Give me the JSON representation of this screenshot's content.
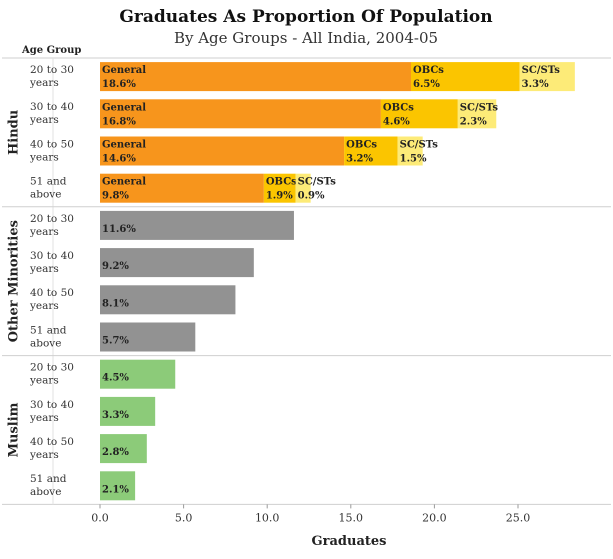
{
  "title": "Graduates As Proportion Of Population",
  "subtitle": "By Age Groups - All India, 2004-05",
  "row_header": "Age Group",
  "colors": {
    "General": "#F7951C",
    "OBCs": "#FBC500",
    "SC/STs": "#FDEB78",
    "Other Minorities": "#929292",
    "Muslim": "#8CCB79"
  },
  "chart_data": {
    "type": "bar",
    "orientation": "horizontal",
    "stacked": true,
    "xlabel": "Graduates",
    "xlim": [
      0,
      29
    ],
    "xticks": [
      0.0,
      5.0,
      10.0,
      15.0,
      20.0,
      25.0
    ],
    "xtick_labels": [
      "0.0",
      "5.0",
      "10.0",
      "15.0",
      "20.0",
      "25.0"
    ],
    "groups": [
      {
        "name": "Hindu",
        "rows": [
          {
            "label": [
              "20 to 30",
              "years"
            ],
            "segments": [
              {
                "name": "General",
                "value": 18.6,
                "display": "18.6%"
              },
              {
                "name": "OBCs",
                "value": 6.5,
                "display": "6.5%"
              },
              {
                "name": "SC/STs",
                "value": 3.3,
                "display": "3.3%"
              }
            ]
          },
          {
            "label": [
              "30 to 40",
              "years"
            ],
            "segments": [
              {
                "name": "General",
                "value": 16.8,
                "display": "16.8%"
              },
              {
                "name": "OBCs",
                "value": 4.6,
                "display": "4.6%"
              },
              {
                "name": "SC/STs",
                "value": 2.3,
                "display": "2.3%"
              }
            ]
          },
          {
            "label": [
              "40 to 50",
              "years"
            ],
            "segments": [
              {
                "name": "General",
                "value": 14.6,
                "display": "14.6%"
              },
              {
                "name": "OBCs",
                "value": 3.2,
                "display": "3.2%"
              },
              {
                "name": "SC/STs",
                "value": 1.5,
                "display": "1.5%"
              }
            ]
          },
          {
            "label": [
              "51 and",
              "above"
            ],
            "segments": [
              {
                "name": "General",
                "value": 9.8,
                "display": "9.8%"
              },
              {
                "name": "OBCs",
                "value": 1.9,
                "display": "1.9%"
              },
              {
                "name": "SC/STs",
                "value": 0.9,
                "display": "0.9%"
              }
            ]
          }
        ]
      },
      {
        "name": "Other Minorities",
        "rows": [
          {
            "label": [
              "20 to 30",
              "years"
            ],
            "segments": [
              {
                "name": "Other Minorities",
                "value": 11.6,
                "display": "11.6%"
              }
            ]
          },
          {
            "label": [
              "30 to 40",
              "years"
            ],
            "segments": [
              {
                "name": "Other Minorities",
                "value": 9.2,
                "display": "9.2%"
              }
            ]
          },
          {
            "label": [
              "40 to 50",
              "years"
            ],
            "segments": [
              {
                "name": "Other Minorities",
                "value": 8.1,
                "display": "8.1%"
              }
            ]
          },
          {
            "label": [
              "51 and",
              "above"
            ],
            "segments": [
              {
                "name": "Other Minorities",
                "value": 5.7,
                "display": "5.7%"
              }
            ]
          }
        ]
      },
      {
        "name": "Muslim",
        "rows": [
          {
            "label": [
              "20 to 30",
              "years"
            ],
            "segments": [
              {
                "name": "Muslim",
                "value": 4.5,
                "display": "4.5%"
              }
            ]
          },
          {
            "label": [
              "30 to 40",
              "years"
            ],
            "segments": [
              {
                "name": "Muslim",
                "value": 3.3,
                "display": "3.3%"
              }
            ]
          },
          {
            "label": [
              "40 to 50",
              "years"
            ],
            "segments": [
              {
                "name": "Muslim",
                "value": 2.8,
                "display": "2.8%"
              }
            ]
          },
          {
            "label": [
              "51 and",
              "above"
            ],
            "segments": [
              {
                "name": "Muslim",
                "value": 2.1,
                "display": "2.1%"
              }
            ]
          }
        ]
      }
    ]
  }
}
